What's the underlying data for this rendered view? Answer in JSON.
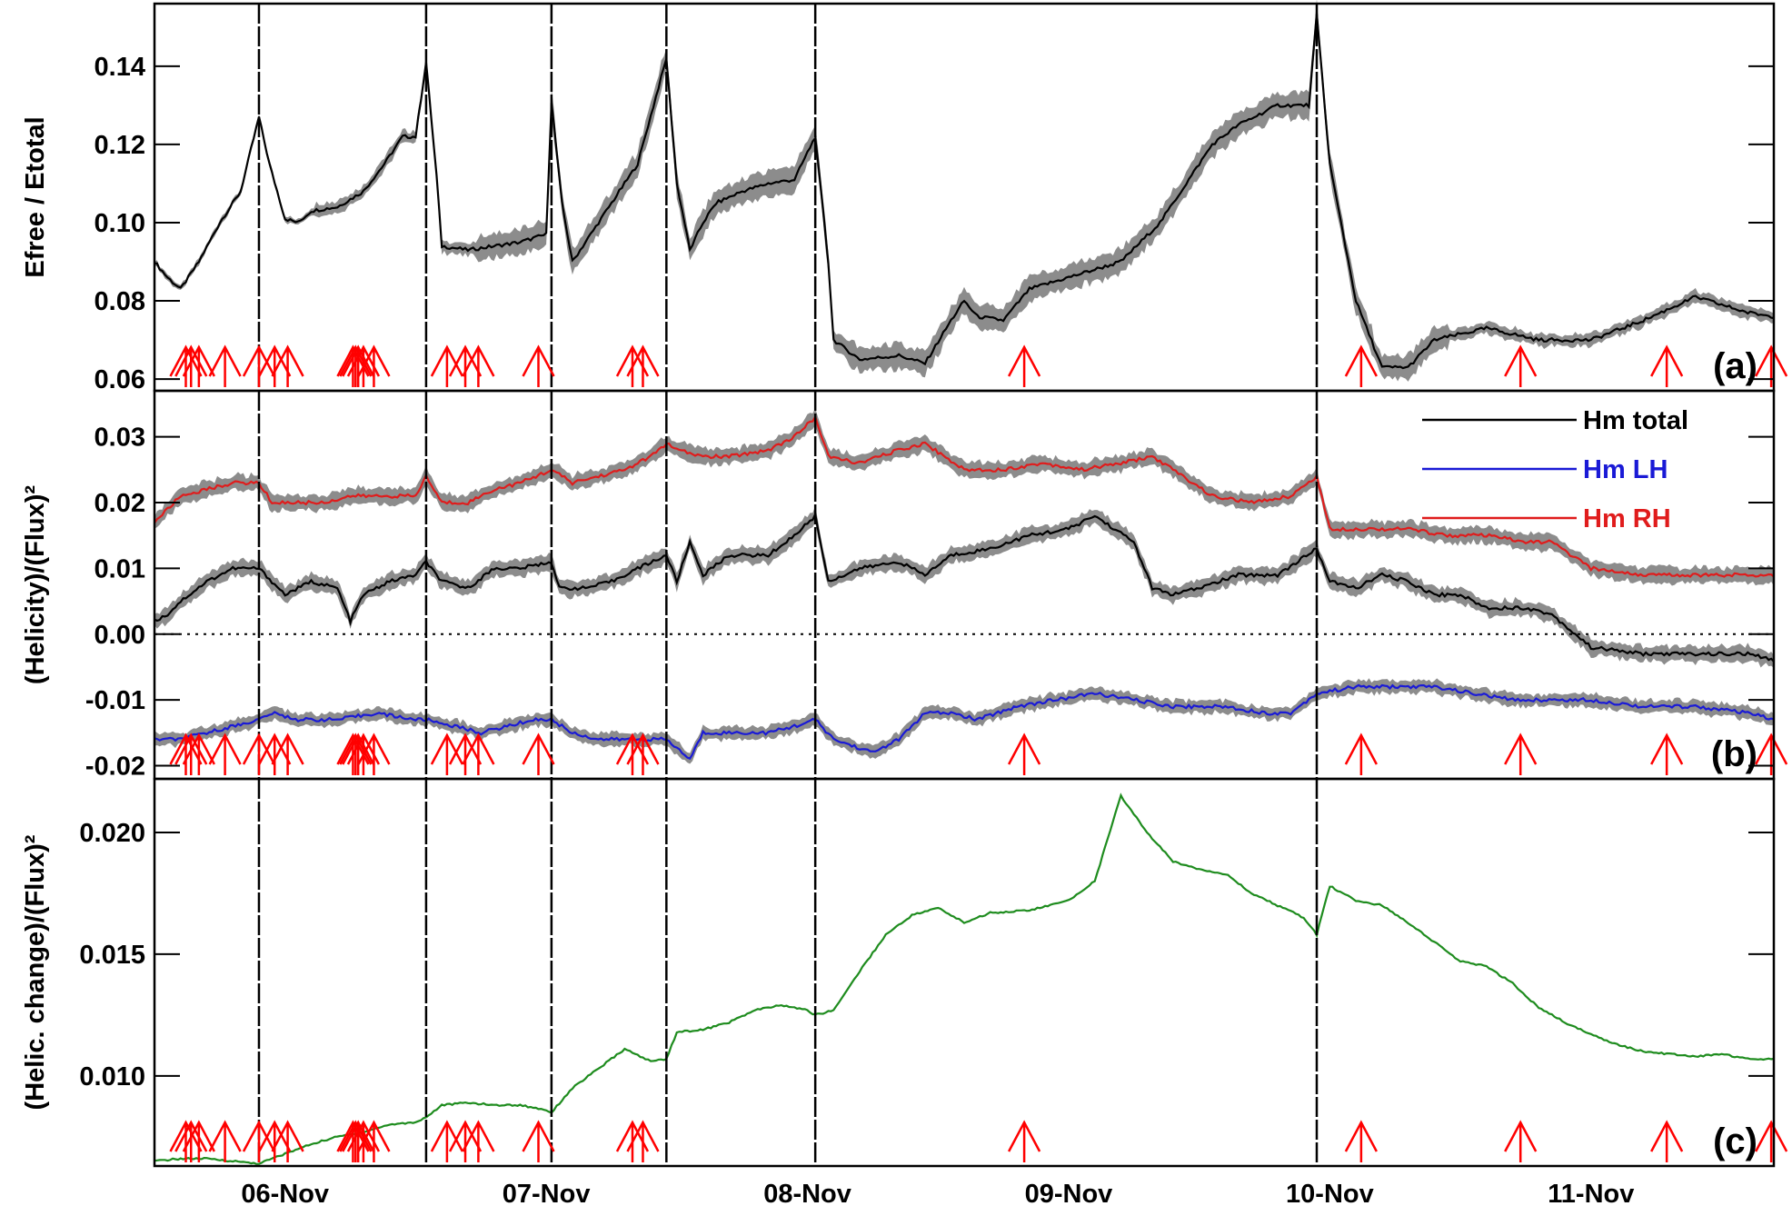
{
  "figure": {
    "x_tick_labels": [
      "06-Nov",
      "07-Nov",
      "08-Nov",
      "09-Nov",
      "10-Nov",
      "11-Nov"
    ],
    "x_tick_positions": [
      0.5,
      1.5,
      2.5,
      3.5,
      4.5,
      5.5
    ],
    "x_range": [
      0,
      6.2
    ],
    "flare_vertical_lines": [
      0.4,
      1.04,
      1.52,
      1.96,
      2.53,
      4.45
    ],
    "flare_arrows": [
      0.12,
      0.14,
      0.17,
      0.27,
      0.4,
      0.46,
      0.51,
      0.76,
      0.77,
      0.78,
      0.8,
      0.84,
      1.12,
      1.19,
      1.24,
      1.47,
      1.83,
      1.87,
      3.33,
      4.62,
      5.23,
      5.79,
      6.19
    ],
    "colors": {
      "total": "#000000",
      "lh": "#1a1ad6",
      "rh": "#e01c1c",
      "change": "#1e8c1e",
      "band": "#8c8c8c",
      "arrow": "#ff0000"
    }
  },
  "chart_data": [
    {
      "type": "line",
      "panel_tag": "(a)",
      "xlabel": "",
      "ylabel": "Efree / Etotal",
      "ylim": [
        0.057,
        0.156
      ],
      "y_ticks": [
        "0.06",
        "0.08",
        "0.10",
        "0.12",
        "0.14"
      ],
      "y_tick_values": [
        0.06,
        0.08,
        0.1,
        0.12,
        0.14
      ],
      "band_half_width": [
        0.001,
        0.002,
        0.004,
        0.004,
        0.004,
        0.004,
        0.004,
        0.004,
        0.002,
        0.002
      ],
      "series": [
        {
          "color_key": "total",
          "band": true,
          "x": [
            0.0,
            0.05,
            0.1,
            0.17,
            0.25,
            0.33,
            0.4,
            0.44,
            0.5,
            0.55,
            0.6,
            0.7,
            0.8,
            0.88,
            0.95,
            1.0,
            1.04,
            1.08,
            1.1,
            1.2,
            1.3,
            1.4,
            1.5,
            1.52,
            1.56,
            1.6,
            1.65,
            1.75,
            1.85,
            1.96,
            2.0,
            2.05,
            2.1,
            2.15,
            2.25,
            2.35,
            2.45,
            2.53,
            2.58,
            2.6,
            2.7,
            2.85,
            2.95,
            3.05,
            3.1,
            3.15,
            3.25,
            3.35,
            3.45,
            3.55,
            3.7,
            3.85,
            3.95,
            4.05,
            4.15,
            4.3,
            4.42,
            4.45,
            4.5,
            4.6,
            4.7,
            4.8,
            4.9,
            5.1,
            5.3,
            5.5,
            5.7,
            5.9,
            6.0,
            6.1,
            6.2
          ],
          "values": [
            0.09,
            0.086,
            0.083,
            0.09,
            0.1,
            0.108,
            0.127,
            0.115,
            0.101,
            0.1,
            0.103,
            0.104,
            0.108,
            0.115,
            0.122,
            0.122,
            0.141,
            0.112,
            0.094,
            0.093,
            0.094,
            0.095,
            0.097,
            0.131,
            0.105,
            0.09,
            0.095,
            0.105,
            0.115,
            0.142,
            0.11,
            0.093,
            0.1,
            0.105,
            0.108,
            0.11,
            0.111,
            0.122,
            0.09,
            0.07,
            0.065,
            0.066,
            0.064,
            0.075,
            0.08,
            0.076,
            0.075,
            0.083,
            0.085,
            0.087,
            0.09,
            0.1,
            0.11,
            0.12,
            0.125,
            0.13,
            0.13,
            0.153,
            0.115,
            0.08,
            0.063,
            0.063,
            0.07,
            0.073,
            0.07,
            0.07,
            0.075,
            0.081,
            0.079,
            0.077,
            0.076
          ]
        }
      ]
    },
    {
      "type": "line",
      "panel_tag": "(b)",
      "xlabel": "",
      "ylabel": "(Helicity)/(Flux)²",
      "ylim": [
        -0.022,
        0.037
      ],
      "y_ticks": [
        "-0.02",
        "-0.01",
        "0.00",
        "0.01",
        "0.02",
        "0.03"
      ],
      "y_tick_values": [
        -0.02,
        -0.01,
        0.0,
        0.01,
        0.02,
        0.03
      ],
      "zero_line": true,
      "legend": {
        "position": "top-right",
        "entries": [
          "Hm total",
          "Hm LH",
          "Hm RH"
        ]
      },
      "series": [
        {
          "name": "Hm total",
          "color_key": "total",
          "band": true,
          "band_half_width": 0.0015,
          "x": [
            0.0,
            0.05,
            0.1,
            0.2,
            0.3,
            0.4,
            0.45,
            0.5,
            0.6,
            0.7,
            0.75,
            0.8,
            0.9,
            1.0,
            1.04,
            1.1,
            1.2,
            1.3,
            1.4,
            1.52,
            1.55,
            1.65,
            1.75,
            1.85,
            1.96,
            2.0,
            2.05,
            2.1,
            2.2,
            2.35,
            2.45,
            2.53,
            2.58,
            2.7,
            2.85,
            2.95,
            3.05,
            3.2,
            3.35,
            3.5,
            3.6,
            3.75,
            3.82,
            3.9,
            4.0,
            4.15,
            4.3,
            4.45,
            4.5,
            4.6,
            4.7,
            4.8,
            4.9,
            5.0,
            5.1,
            5.25,
            5.35,
            5.5,
            5.7,
            5.9,
            6.1,
            6.2
          ],
          "values": [
            0.002,
            0.003,
            0.005,
            0.008,
            0.01,
            0.01,
            0.008,
            0.006,
            0.008,
            0.007,
            0.002,
            0.006,
            0.008,
            0.009,
            0.011,
            0.008,
            0.007,
            0.01,
            0.01,
            0.011,
            0.007,
            0.007,
            0.008,
            0.01,
            0.012,
            0.008,
            0.014,
            0.009,
            0.012,
            0.012,
            0.015,
            0.018,
            0.008,
            0.01,
            0.011,
            0.009,
            0.012,
            0.013,
            0.015,
            0.016,
            0.018,
            0.014,
            0.007,
            0.006,
            0.007,
            0.009,
            0.009,
            0.013,
            0.008,
            0.007,
            0.009,
            0.008,
            0.006,
            0.006,
            0.004,
            0.004,
            0.003,
            -0.002,
            -0.003,
            -0.003,
            -0.003,
            -0.004
          ]
        },
        {
          "name": "Hm LH",
          "color_key": "lh",
          "band": true,
          "band_half_width": 0.0012,
          "x": [
            0.0,
            0.1,
            0.2,
            0.3,
            0.4,
            0.45,
            0.55,
            0.7,
            0.85,
            1.0,
            1.04,
            1.15,
            1.25,
            1.35,
            1.45,
            1.52,
            1.6,
            1.7,
            1.8,
            1.9,
            1.96,
            2.05,
            2.1,
            2.2,
            2.35,
            2.45,
            2.53,
            2.6,
            2.75,
            2.85,
            2.95,
            3.05,
            3.15,
            3.3,
            3.45,
            3.6,
            3.75,
            3.9,
            4.1,
            4.25,
            4.35,
            4.45,
            4.6,
            4.75,
            4.9,
            5.05,
            5.2,
            5.35,
            5.5,
            5.7,
            5.9,
            6.1,
            6.2
          ],
          "values": [
            -0.016,
            -0.016,
            -0.015,
            -0.014,
            -0.013,
            -0.012,
            -0.013,
            -0.013,
            -0.012,
            -0.013,
            -0.013,
            -0.014,
            -0.015,
            -0.014,
            -0.013,
            -0.013,
            -0.015,
            -0.016,
            -0.016,
            -0.016,
            -0.016,
            -0.019,
            -0.015,
            -0.015,
            -0.015,
            -0.014,
            -0.013,
            -0.016,
            -0.018,
            -0.016,
            -0.012,
            -0.012,
            -0.013,
            -0.011,
            -0.01,
            -0.009,
            -0.01,
            -0.011,
            -0.011,
            -0.012,
            -0.012,
            -0.009,
            -0.008,
            -0.008,
            -0.008,
            -0.009,
            -0.01,
            -0.01,
            -0.01,
            -0.011,
            -0.011,
            -0.012,
            -0.013
          ]
        },
        {
          "name": "Hm RH",
          "color_key": "rh",
          "band": true,
          "band_half_width": 0.0015,
          "x": [
            0.0,
            0.05,
            0.1,
            0.2,
            0.3,
            0.4,
            0.45,
            0.55,
            0.65,
            0.75,
            0.9,
            1.0,
            1.04,
            1.1,
            1.2,
            1.3,
            1.4,
            1.52,
            1.6,
            1.7,
            1.8,
            1.9,
            1.96,
            2.0,
            2.1,
            2.2,
            2.35,
            2.45,
            2.53,
            2.58,
            2.7,
            2.85,
            2.95,
            3.1,
            3.25,
            3.4,
            3.55,
            3.7,
            3.82,
            3.9,
            4.05,
            4.2,
            4.35,
            4.45,
            4.5,
            4.65,
            4.8,
            4.95,
            5.1,
            5.25,
            5.35,
            5.5,
            5.7,
            5.9,
            6.1,
            6.2
          ],
          "values": [
            0.017,
            0.019,
            0.021,
            0.022,
            0.023,
            0.023,
            0.02,
            0.02,
            0.02,
            0.021,
            0.021,
            0.021,
            0.024,
            0.02,
            0.02,
            0.022,
            0.023,
            0.025,
            0.023,
            0.024,
            0.025,
            0.027,
            0.029,
            0.028,
            0.027,
            0.027,
            0.028,
            0.03,
            0.033,
            0.027,
            0.026,
            0.028,
            0.029,
            0.025,
            0.025,
            0.026,
            0.025,
            0.026,
            0.027,
            0.025,
            0.021,
            0.02,
            0.021,
            0.024,
            0.016,
            0.016,
            0.016,
            0.015,
            0.015,
            0.014,
            0.014,
            0.01,
            0.009,
            0.009,
            0.009,
            0.009
          ]
        }
      ]
    },
    {
      "type": "line",
      "panel_tag": "(c)",
      "xlabel": "",
      "ylabel": "(Helic. change)/(Flux)²",
      "ylim": [
        0.0063,
        0.0222
      ],
      "y_ticks": [
        "0.010",
        "0.015",
        "0.020"
      ],
      "y_tick_values": [
        0.01,
        0.015,
        0.02
      ],
      "series": [
        {
          "color_key": "change",
          "band": false,
          "x": [
            0.0,
            0.1,
            0.2,
            0.3,
            0.4,
            0.5,
            0.6,
            0.7,
            0.8,
            0.9,
            1.0,
            1.04,
            1.1,
            1.2,
            1.3,
            1.4,
            1.5,
            1.52,
            1.6,
            1.7,
            1.8,
            1.9,
            1.96,
            2.0,
            2.1,
            2.2,
            2.3,
            2.4,
            2.5,
            2.53,
            2.6,
            2.7,
            2.8,
            2.9,
            3.0,
            3.1,
            3.2,
            3.35,
            3.5,
            3.6,
            3.7,
            3.8,
            3.9,
            4.0,
            4.1,
            4.2,
            4.3,
            4.4,
            4.45,
            4.5,
            4.6,
            4.7,
            4.8,
            4.9,
            5.0,
            5.1,
            5.2,
            5.3,
            5.4,
            5.5,
            5.6,
            5.7,
            5.8,
            5.9,
            6.0,
            6.1,
            6.2
          ],
          "values": [
            0.0065,
            0.0066,
            0.0066,
            0.0065,
            0.0064,
            0.0068,
            0.0072,
            0.0075,
            0.0077,
            0.008,
            0.0081,
            0.0083,
            0.0088,
            0.0089,
            0.0088,
            0.0088,
            0.0086,
            0.0085,
            0.0095,
            0.0103,
            0.0111,
            0.0106,
            0.0107,
            0.0118,
            0.0119,
            0.0122,
            0.0127,
            0.0129,
            0.0127,
            0.0125,
            0.0127,
            0.0143,
            0.0158,
            0.0166,
            0.0169,
            0.0163,
            0.0167,
            0.0168,
            0.0172,
            0.018,
            0.0215,
            0.02,
            0.0188,
            0.0185,
            0.0183,
            0.0175,
            0.017,
            0.0165,
            0.0158,
            0.0178,
            0.0172,
            0.017,
            0.0163,
            0.0155,
            0.0147,
            0.0145,
            0.0138,
            0.0128,
            0.0122,
            0.0117,
            0.0113,
            0.011,
            0.0109,
            0.0108,
            0.0109,
            0.0107,
            0.0107
          ]
        }
      ]
    }
  ]
}
